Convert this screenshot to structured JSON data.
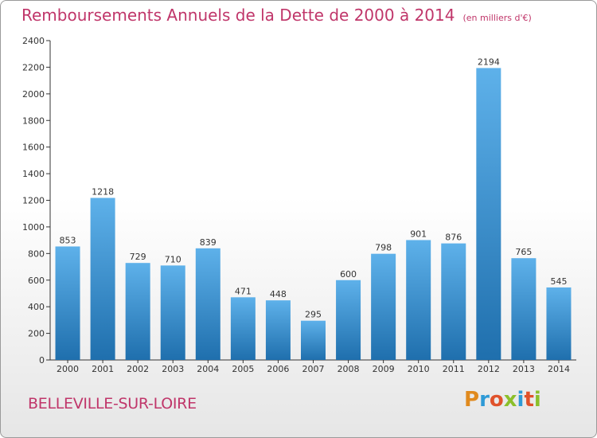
{
  "header": {
    "title": "Remboursements Annuels de la Dette de 2000 à 2014",
    "unit": "(en milliers d'€)"
  },
  "footer": {
    "commune": "BELLEVILLE-SUR-LOIRE",
    "logo_letters": [
      "P",
      "r",
      "o",
      "x",
      "i",
      "t",
      "i"
    ],
    "logo_colors": [
      "#e08a1e",
      "#2e9ad6",
      "#e0522b",
      "#8bbf2b",
      "#2e9ad6",
      "#e0522b",
      "#8bbf2b"
    ]
  },
  "chart_data": {
    "type": "bar",
    "categories": [
      "2000",
      "2001",
      "2002",
      "2003",
      "2004",
      "2005",
      "2006",
      "2007",
      "2008",
      "2009",
      "2010",
      "2011",
      "2012",
      "2013",
      "2014"
    ],
    "values": [
      853,
      1218,
      729,
      710,
      839,
      471,
      448,
      295,
      600,
      798,
      901,
      876,
      2194,
      765,
      545
    ],
    "ylim": [
      0,
      2400
    ],
    "yticks": [
      0,
      200,
      400,
      600,
      800,
      1000,
      1200,
      1400,
      1600,
      1800,
      2000,
      2200,
      2400
    ],
    "grid": false,
    "data_labels": true,
    "colors": {
      "bar_top": "#5eb1ea",
      "bar_bottom": "#1f6fad",
      "axis": "#333333",
      "text": "#333333",
      "title": "#c0366a"
    }
  }
}
